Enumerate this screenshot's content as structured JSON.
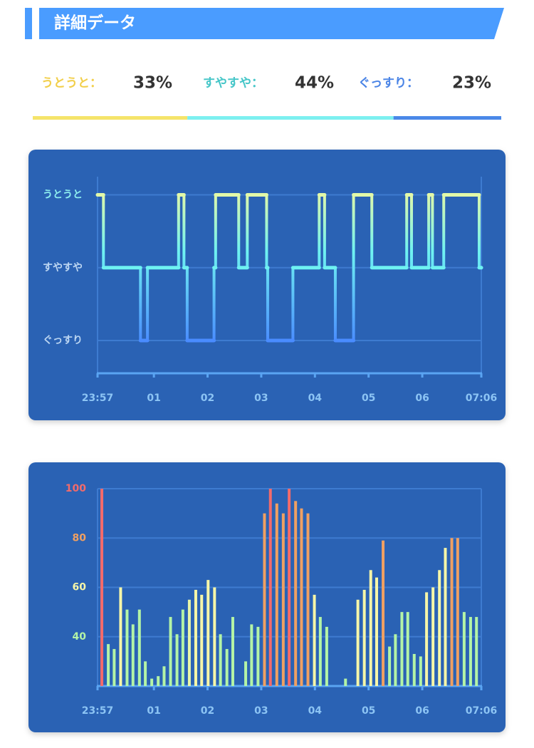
{
  "header": {
    "title": "詳細データ"
  },
  "summary": [
    {
      "label": "うとうと：",
      "value": 33,
      "value_label": "33%",
      "color": "#f2cf4a",
      "bar_color": "#f5e46a"
    },
    {
      "label": "すやすや：",
      "value": 44,
      "value_label": "44%",
      "color": "#45c6c8",
      "bar_color": "#7cf0f0"
    },
    {
      "label": "ぐっすり：",
      "value": 23,
      "value_label": "23%",
      "color": "#4a84e6",
      "bar_color": "#4a88e8"
    }
  ],
  "chart_data": [
    {
      "type": "step",
      "x": [
        23.95,
        24.06,
        24.75,
        24.88,
        25.46,
        25.56,
        25.62,
        26.12,
        26.15,
        26.58,
        26.74,
        27.1,
        27.12,
        27.59,
        28.08,
        28.18,
        28.38,
        28.72,
        29.06,
        29.71,
        29.8,
        30.12,
        30.19,
        30.4,
        31.06,
        31.1
      ],
      "values": [
        3,
        2,
        1,
        2,
        3,
        2,
        1,
        2,
        3,
        2,
        3,
        2,
        1,
        2,
        3,
        2,
        1,
        3,
        2,
        3,
        2,
        3,
        2,
        3,
        2,
        2
      ],
      "xlim": [
        23.95,
        31.1
      ],
      "xticks": [
        {
          "value": 23.95,
          "label": "23:57"
        },
        {
          "value": 25,
          "label": "01"
        },
        {
          "value": 26,
          "label": "02"
        },
        {
          "value": 27,
          "label": "03"
        },
        {
          "value": 28,
          "label": "04"
        },
        {
          "value": 29,
          "label": "05"
        },
        {
          "value": 30,
          "label": "06"
        },
        {
          "value": 31.1,
          "label": "07:06"
        }
      ],
      "ylim": [
        0.55,
        3.25
      ],
      "yticks": [
        {
          "value": 1,
          "label": "ぐっすり"
        },
        {
          "value": 2,
          "label": "すやすや"
        },
        {
          "value": 3,
          "label": "うとうと"
        }
      ],
      "ytick_colors": [
        "#bcd6f2",
        "#bcd6f2",
        "#8ff0f0"
      ],
      "level_colors": [
        "#4a8cff",
        "#6ef2f2",
        "#e2f8a8"
      ],
      "grid": true
    },
    {
      "type": "bar",
      "x": [
        24.03,
        24.15,
        24.26,
        24.38,
        24.5,
        24.61,
        24.73,
        24.84,
        24.96,
        25.08,
        25.19,
        25.31,
        25.43,
        25.54,
        25.66,
        25.78,
        25.89,
        26.01,
        26.13,
        26.24,
        26.36,
        26.47,
        26.71,
        26.82,
        26.94,
        27.06,
        27.17,
        27.29,
        27.41,
        27.52,
        27.64,
        27.75,
        27.87,
        27.99,
        28.1,
        28.22,
        28.57,
        28.8,
        28.92,
        29.04,
        29.15,
        29.27,
        29.39,
        29.5,
        29.62,
        29.73,
        29.85,
        29.97,
        30.08,
        30.2,
        30.32,
        30.43,
        30.55,
        30.66,
        30.78,
        30.9,
        31.01
      ],
      "values": [
        100,
        37,
        35,
        60,
        51,
        45,
        51,
        30,
        23,
        24,
        28,
        48,
        41,
        51,
        55,
        59,
        57,
        63,
        60,
        41,
        35,
        48,
        30,
        45,
        44,
        90,
        100,
        94,
        90,
        100,
        95,
        92,
        90,
        57,
        48,
        44,
        23,
        55,
        59,
        67,
        64,
        79,
        36,
        41,
        50,
        50,
        33,
        32,
        58,
        60,
        67,
        76,
        80,
        80,
        50,
        48,
        48
      ],
      "colors": [
        "#f26b6b",
        "#b4f4a6",
        "#b4f4a6",
        "#f6f6a8",
        "#b4f4a6",
        "#b4f4a6",
        "#b4f4a6",
        "#b4f4a6",
        "#b4f4a6",
        "#b4f4a6",
        "#b4f4a6",
        "#b4f4a6",
        "#b4f4a6",
        "#b4f4a6",
        "#e8f6a8",
        "#f6f6a8",
        "#f6f6a8",
        "#f6f6a8",
        "#f6f6a8",
        "#b4f4a6",
        "#b4f4a6",
        "#b4f4a6",
        "#b4f4a6",
        "#b4f4a6",
        "#b4f4a6",
        "#f0a062",
        "#f26b6b",
        "#f0a062",
        "#f0a062",
        "#f26b6b",
        "#f0a062",
        "#f0a062",
        "#f0a062",
        "#f6f6a8",
        "#b4f4a6",
        "#b4f4a6",
        "#b4f4a6",
        "#f6f6a8",
        "#f6f6a8",
        "#f6f6a8",
        "#f6f6a8",
        "#f0a062",
        "#b4f4a6",
        "#b4f4a6",
        "#b4f4a6",
        "#b4f4a6",
        "#b4f4a6",
        "#b4f4a6",
        "#f6f6a8",
        "#f6f6a8",
        "#f6f6a8",
        "#f6f6a8",
        "#f0a062",
        "#f0a062",
        "#b4f4a6",
        "#b4f4a6",
        "#b4f4a6"
      ],
      "xlim": [
        23.95,
        31.1
      ],
      "xticks": [
        {
          "value": 23.95,
          "label": "23:57"
        },
        {
          "value": 25,
          "label": "01"
        },
        {
          "value": 26,
          "label": "02"
        },
        {
          "value": 27,
          "label": "03"
        },
        {
          "value": 28,
          "label": "04"
        },
        {
          "value": 29,
          "label": "05"
        },
        {
          "value": 30,
          "label": "06"
        },
        {
          "value": 31.1,
          "label": "07:06"
        }
      ],
      "ylim": [
        20,
        100
      ],
      "yticks": [
        40,
        60,
        80,
        100
      ],
      "ytick_colors": [
        "#b4f4a6",
        "#f6f6a8",
        "#f0a062",
        "#f26b6b"
      ],
      "grid": true
    }
  ]
}
